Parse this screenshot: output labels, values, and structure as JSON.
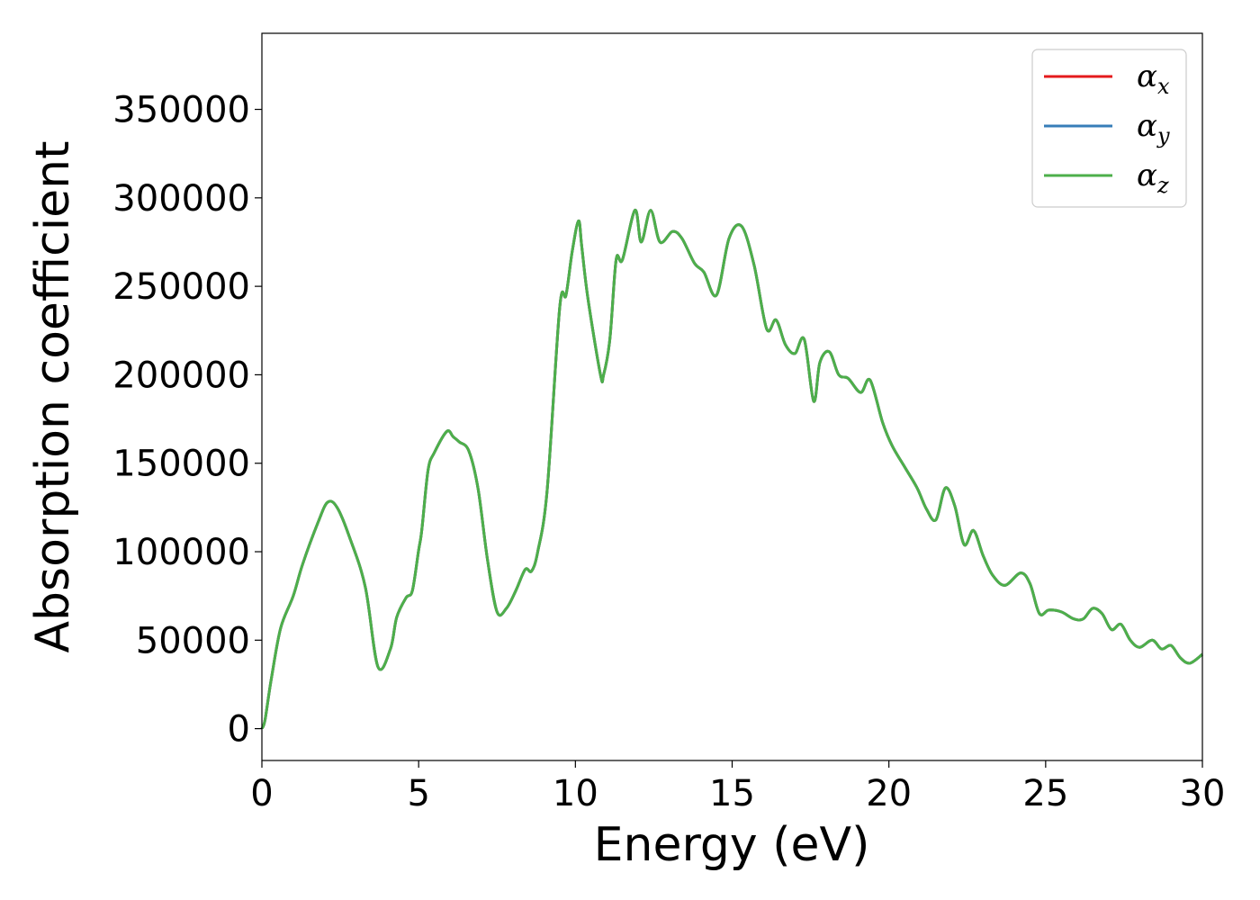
{
  "chart_data": {
    "type": "line",
    "title": "",
    "xlabel": "Energy (eV)",
    "ylabel": "Absorption coefficient",
    "xlim": [
      0,
      30
    ],
    "ylim": [
      -18000,
      393000
    ],
    "xticks": [
      0,
      5,
      10,
      15,
      20,
      25,
      30
    ],
    "yticks": [
      0,
      50000,
      100000,
      150000,
      200000,
      250000,
      300000,
      350000
    ],
    "grid": false,
    "legend": {
      "placement": "top-right"
    },
    "series": [
      {
        "name": "α",
        "subscript": "x",
        "color": "#e41a1c",
        "ref": "z"
      },
      {
        "name": "α",
        "subscript": "y",
        "color": "#377eb8",
        "ref": "z"
      },
      {
        "name": "α",
        "subscript": "z",
        "color": "#4daf4a"
      }
    ],
    "x": [
      0,
      0.1,
      0.3,
      0.6,
      1.0,
      1.3,
      1.8,
      2.1,
      2.4,
      2.8,
      3.3,
      3.7,
      4.1,
      4.3,
      4.6,
      4.8,
      5.0,
      5.1,
      5.3,
      5.5,
      5.9,
      6.1,
      6.3,
      6.6,
      6.9,
      7.2,
      7.5,
      7.8,
      8.1,
      8.4,
      8.6,
      8.8,
      9.1,
      9.5,
      9.7,
      9.9,
      10.1,
      10.2,
      10.4,
      10.8,
      10.9,
      11.1,
      11.3,
      11.5,
      11.9,
      12.1,
      12.4,
      12.7,
      13.1,
      13.4,
      13.8,
      14.1,
      14.5,
      14.9,
      15.3,
      15.7,
      16.1,
      16.4,
      16.7,
      17.0,
      17.3,
      17.6,
      17.8,
      18.1,
      18.4,
      18.7,
      19.1,
      19.4,
      19.8,
      20.1,
      20.5,
      20.9,
      21.2,
      21.5,
      21.8,
      22.1,
      22.4,
      22.7,
      23.0,
      23.3,
      23.7,
      24.2,
      24.5,
      24.8,
      25.1,
      25.5,
      25.9,
      26.2,
      26.5,
      26.8,
      27.1,
      27.4,
      27.7,
      28.0,
      28.4,
      28.7,
      29.0,
      29.3,
      29.6,
      30.0
    ],
    "values": [
      0,
      5000,
      28000,
      57000,
      75000,
      93000,
      117000,
      128000,
      125000,
      108000,
      80000,
      35000,
      45000,
      63000,
      74000,
      78000,
      101000,
      112000,
      146000,
      156000,
      168000,
      165000,
      162000,
      157000,
      135000,
      95000,
      66000,
      68000,
      78000,
      90000,
      89000,
      100000,
      135000,
      238000,
      245000,
      270000,
      287000,
      273000,
      243000,
      200000,
      200000,
      220000,
      265000,
      265000,
      293000,
      275000,
      293000,
      275000,
      281000,
      277000,
      263000,
      258000,
      245000,
      277000,
      284000,
      262000,
      226000,
      231000,
      217000,
      212000,
      220000,
      185000,
      207000,
      213000,
      200000,
      198000,
      190000,
      197000,
      173000,
      160000,
      148000,
      136000,
      124000,
      118000,
      136000,
      126000,
      104000,
      112000,
      98000,
      87000,
      81000,
      88000,
      82000,
      65000,
      67000,
      66000,
      62000,
      62000,
      68000,
      65000,
      56000,
      59000,
      50000,
      46000,
      50000,
      45000,
      47000,
      40000,
      37000,
      42000
    ]
  }
}
